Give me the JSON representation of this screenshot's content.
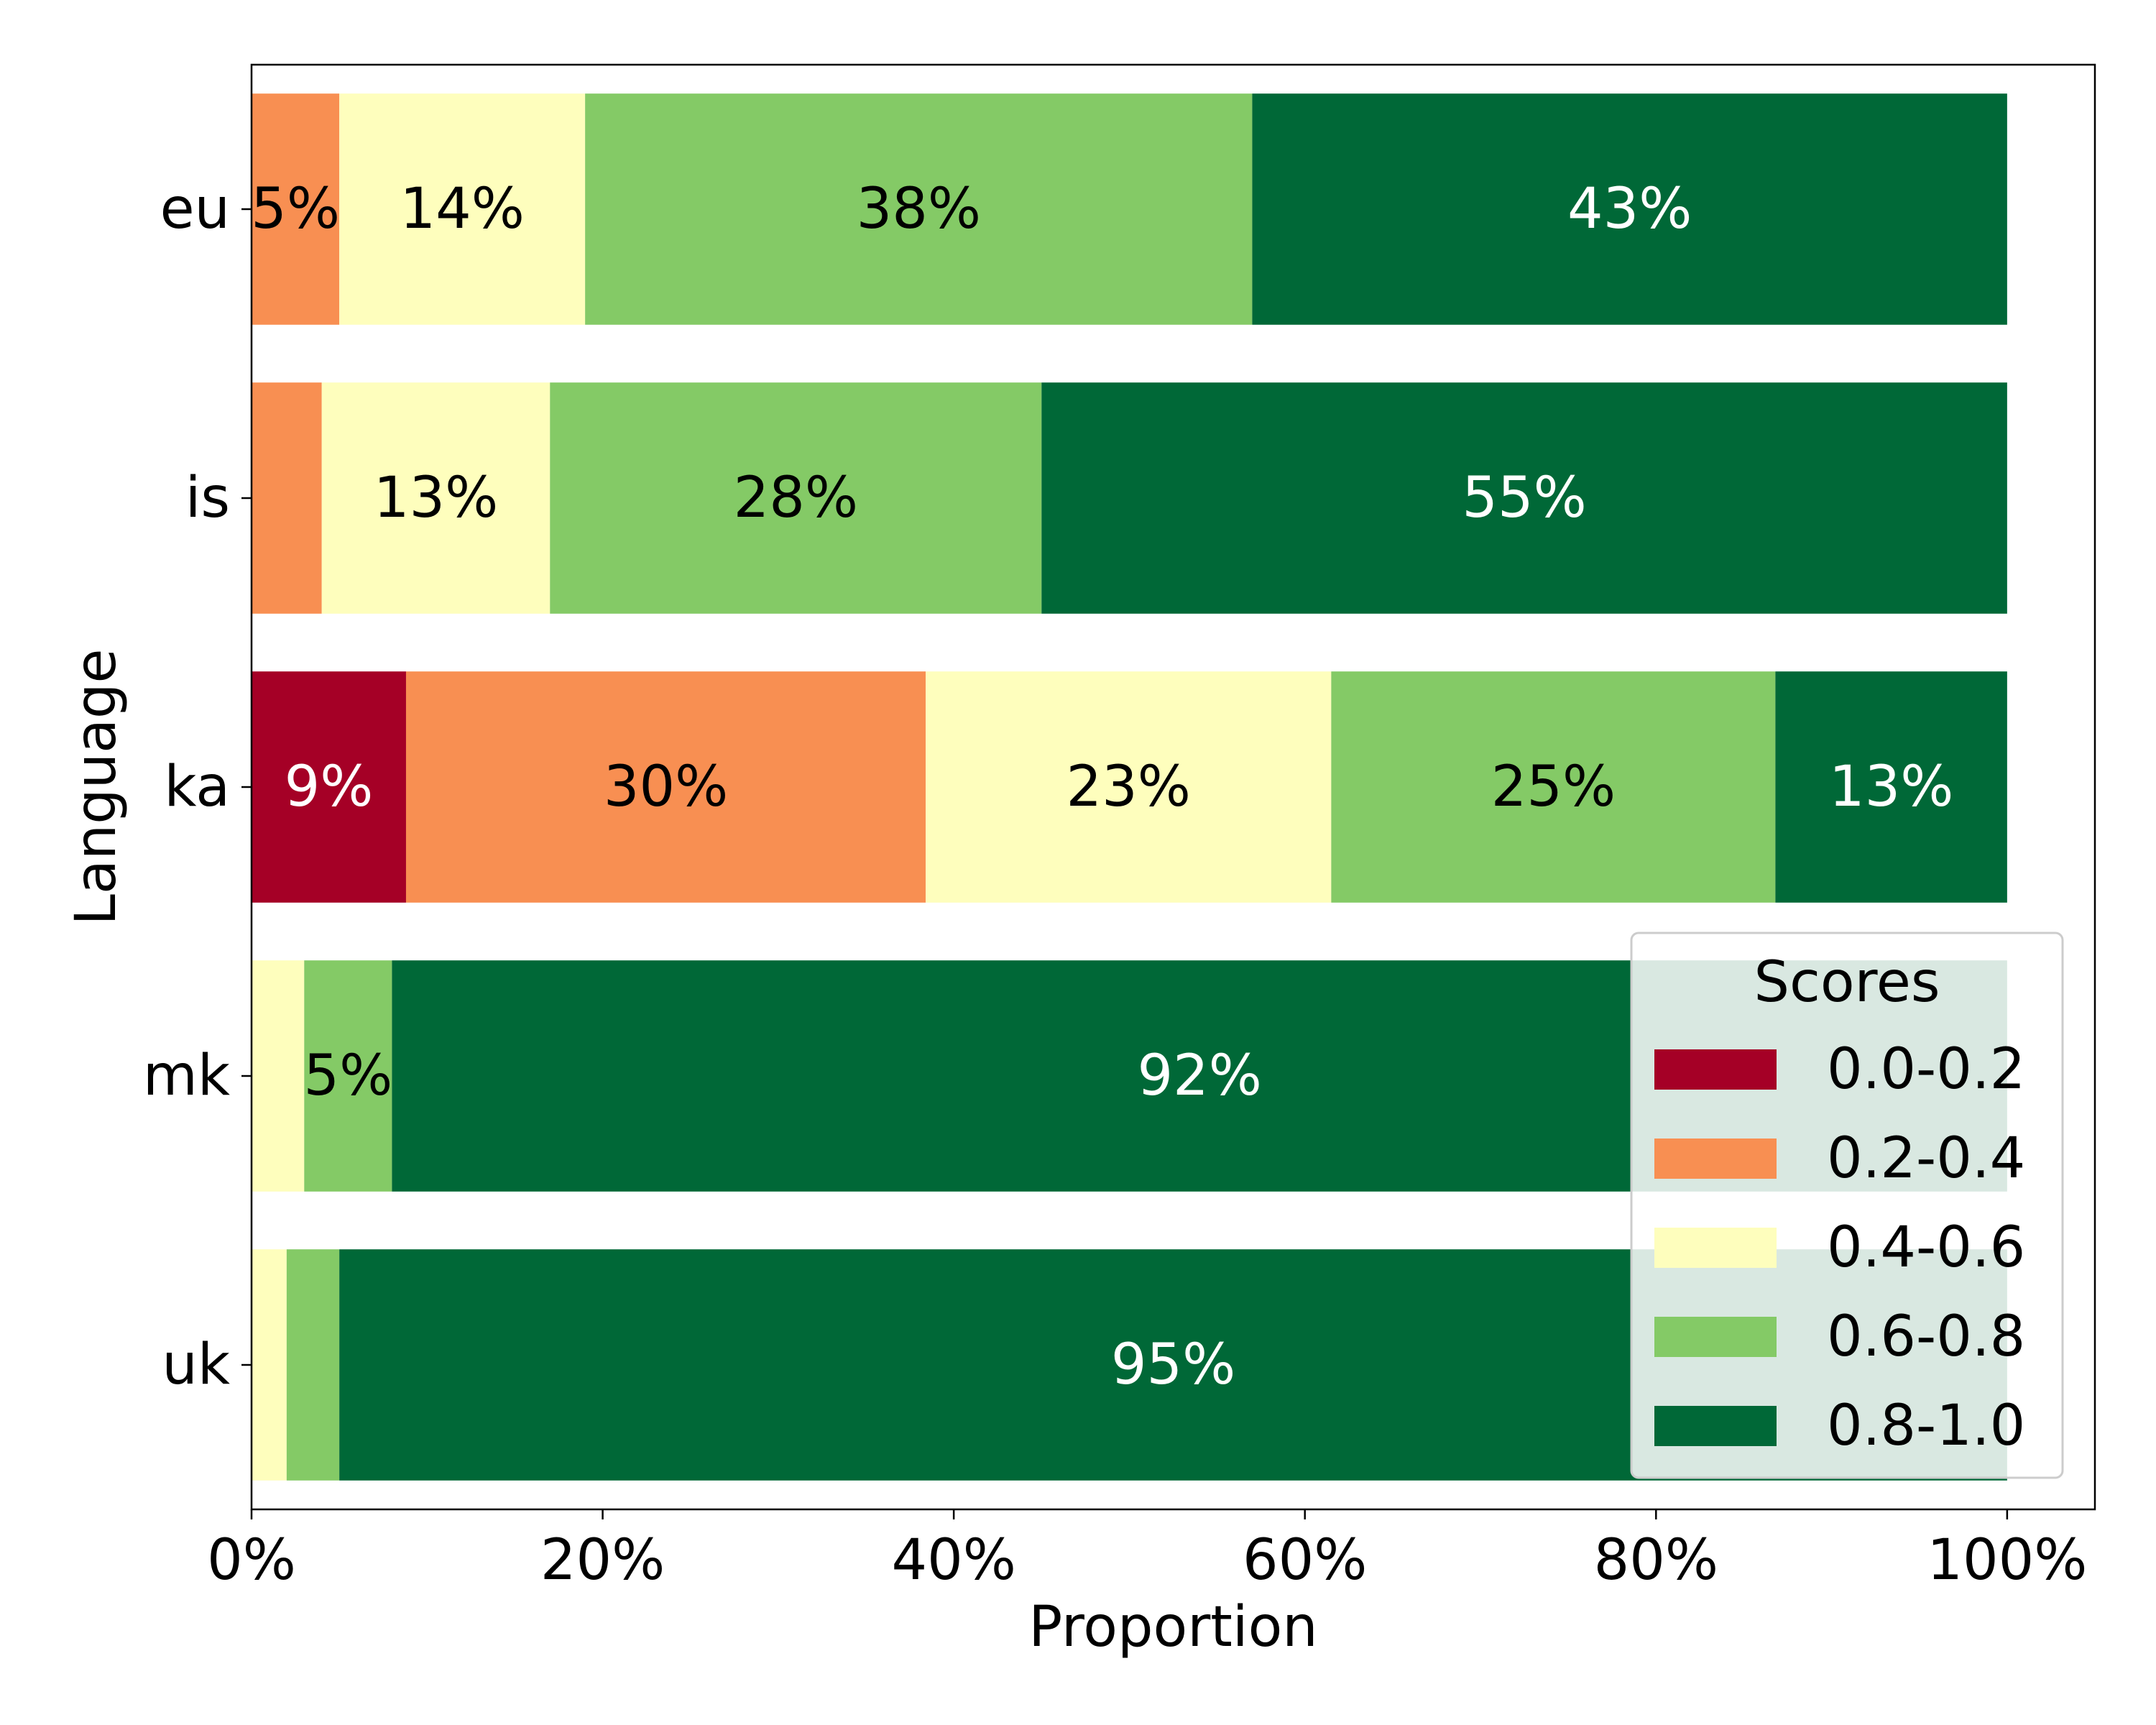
{
  "chart_data": {
    "type": "bar",
    "orientation": "horizontal",
    "stacked": true,
    "categories": [
      "eu",
      "is",
      "ka",
      "mk",
      "uk"
    ],
    "series": [
      {
        "name": "0.0-0.2",
        "color": "#a50026",
        "values": [
          0,
          0,
          8.8,
          0,
          0
        ]
      },
      {
        "name": "0.2-0.4",
        "color": "#f88f52",
        "values": [
          5,
          4,
          29.6,
          0,
          0
        ]
      },
      {
        "name": "0.4-0.6",
        "color": "#fefebd",
        "values": [
          14,
          13,
          23.1,
          3,
          2
        ]
      },
      {
        "name": "0.6-0.8",
        "color": "#84ca66",
        "values": [
          38,
          28,
          25.3,
          5,
          3
        ]
      },
      {
        "name": "0.8-1.0",
        "color": "#006837",
        "values": [
          43,
          55,
          13.2,
          92,
          95
        ]
      }
    ],
    "labels": [
      [
        "",
        "5%",
        "14%",
        "38%",
        "43%"
      ],
      [
        "",
        "",
        "13%",
        "28%",
        "55%"
      ],
      [
        "9%",
        "30%",
        "23%",
        "25%",
        "13%"
      ],
      [
        "",
        "",
        "",
        "5%",
        "92%"
      ],
      [
        "",
        "",
        "",
        "",
        "95%"
      ]
    ],
    "title": "",
    "xlabel": "Proportion",
    "ylabel": "Language",
    "xlim": [
      0,
      105
    ],
    "xticks": [
      0,
      20,
      40,
      60,
      80,
      100
    ],
    "xtick_labels": [
      "0%",
      "20%",
      "40%",
      "60%",
      "80%",
      "100%"
    ],
    "grid": false,
    "legend": {
      "title": "Scores",
      "position": "lower-right"
    }
  }
}
